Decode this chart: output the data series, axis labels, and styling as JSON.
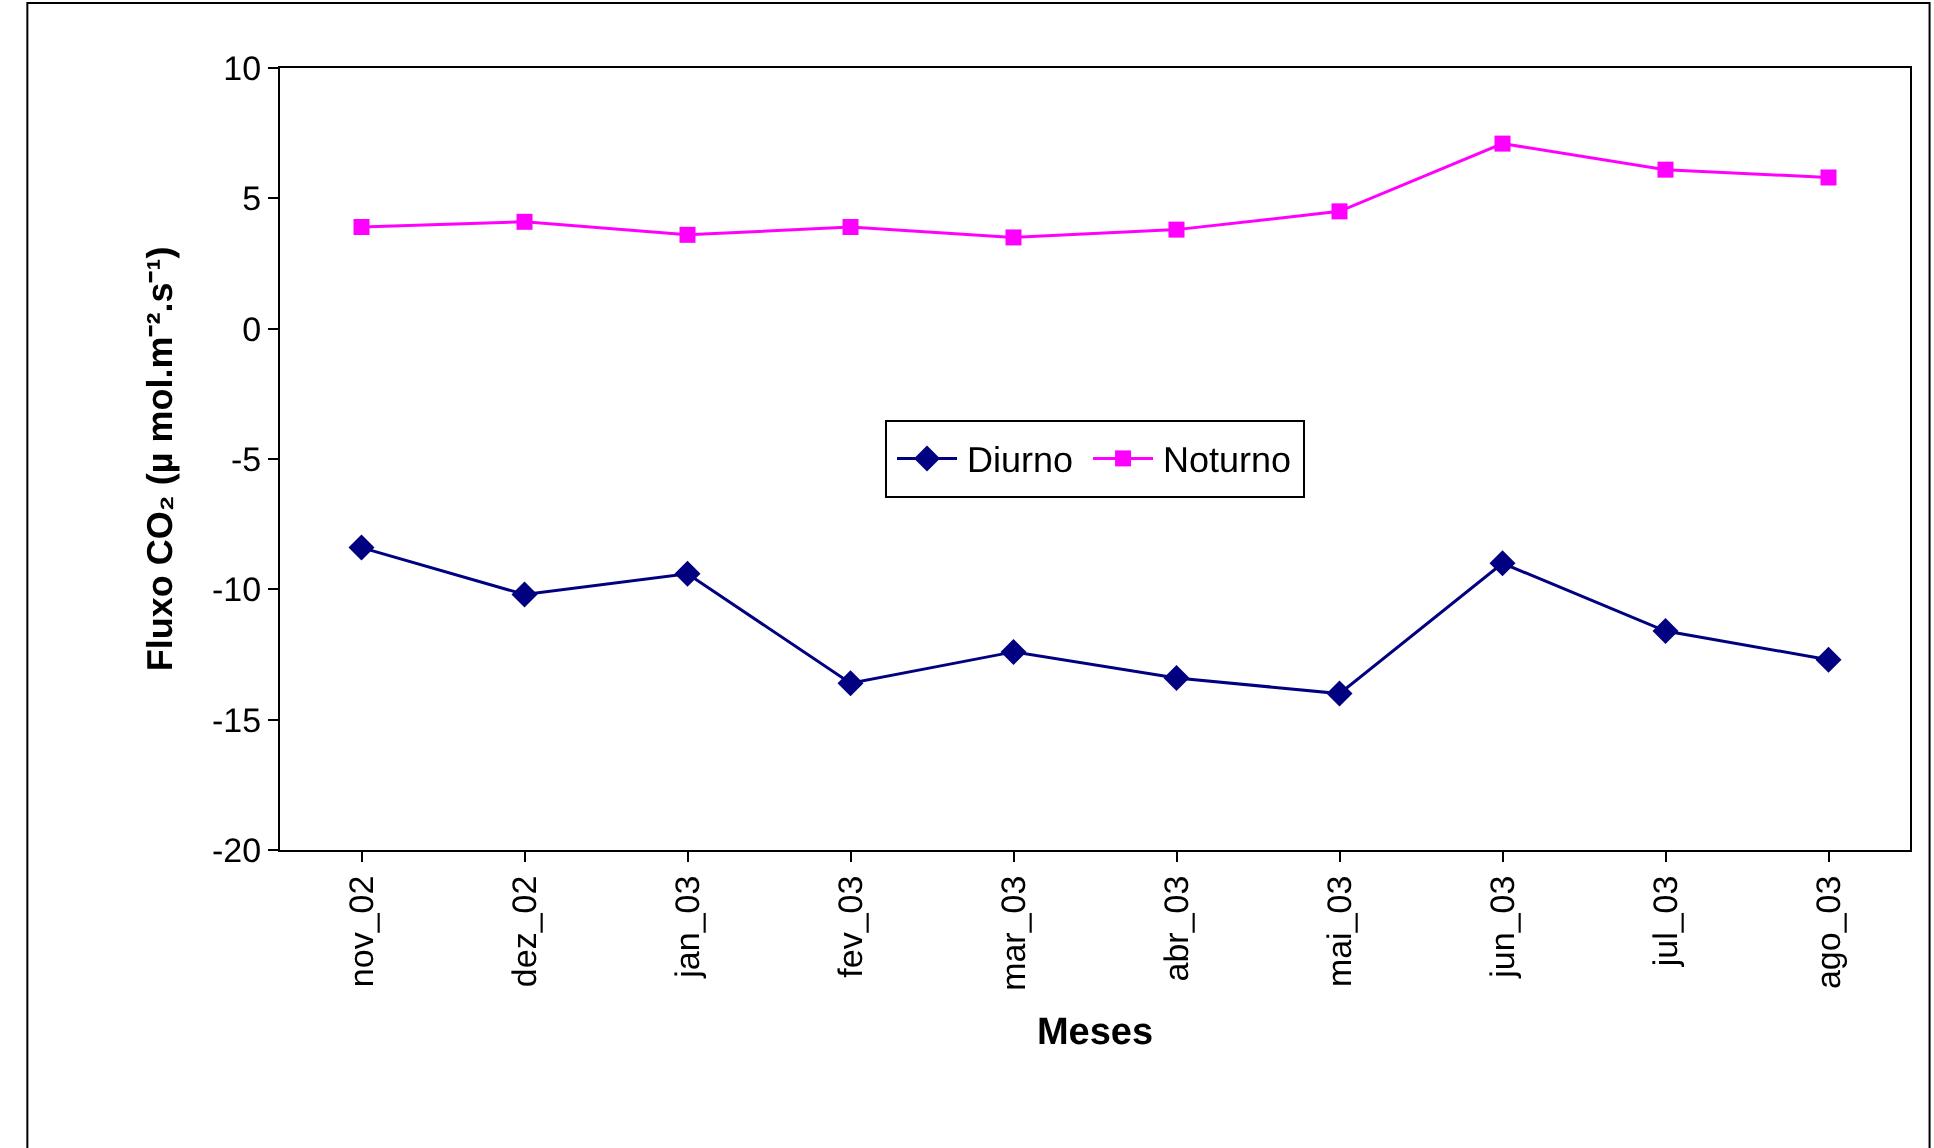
{
  "chart_data": {
    "type": "line",
    "xlabel": "Meses",
    "ylabel": "Fluxo CO₂ (µ mol.m⁻².s⁻¹)",
    "categories": [
      "nov_02",
      "dez_02",
      "jan_03",
      "fev_03",
      "mar_03",
      "abr_03",
      "mai_03",
      "jun_03",
      "jul_03",
      "ago_03"
    ],
    "series": [
      {
        "name": "Diurno",
        "color": "#000080",
        "marker": "diamond",
        "values": [
          -8.4,
          -10.2,
          -9.4,
          -13.6,
          -12.4,
          -13.4,
          -14.0,
          -9.0,
          -11.6,
          -12.7
        ]
      },
      {
        "name": "Noturno",
        "color": "#ff00ff",
        "marker": "square",
        "values": [
          3.9,
          4.1,
          3.6,
          3.9,
          3.5,
          3.8,
          4.5,
          7.1,
          6.1,
          5.8
        ]
      }
    ],
    "ylim": [
      -20,
      10
    ],
    "yticks": [
      -20,
      -15,
      -10,
      -5,
      0,
      5,
      10
    ],
    "grid": false,
    "legend": "center",
    "line_style": "solid"
  }
}
